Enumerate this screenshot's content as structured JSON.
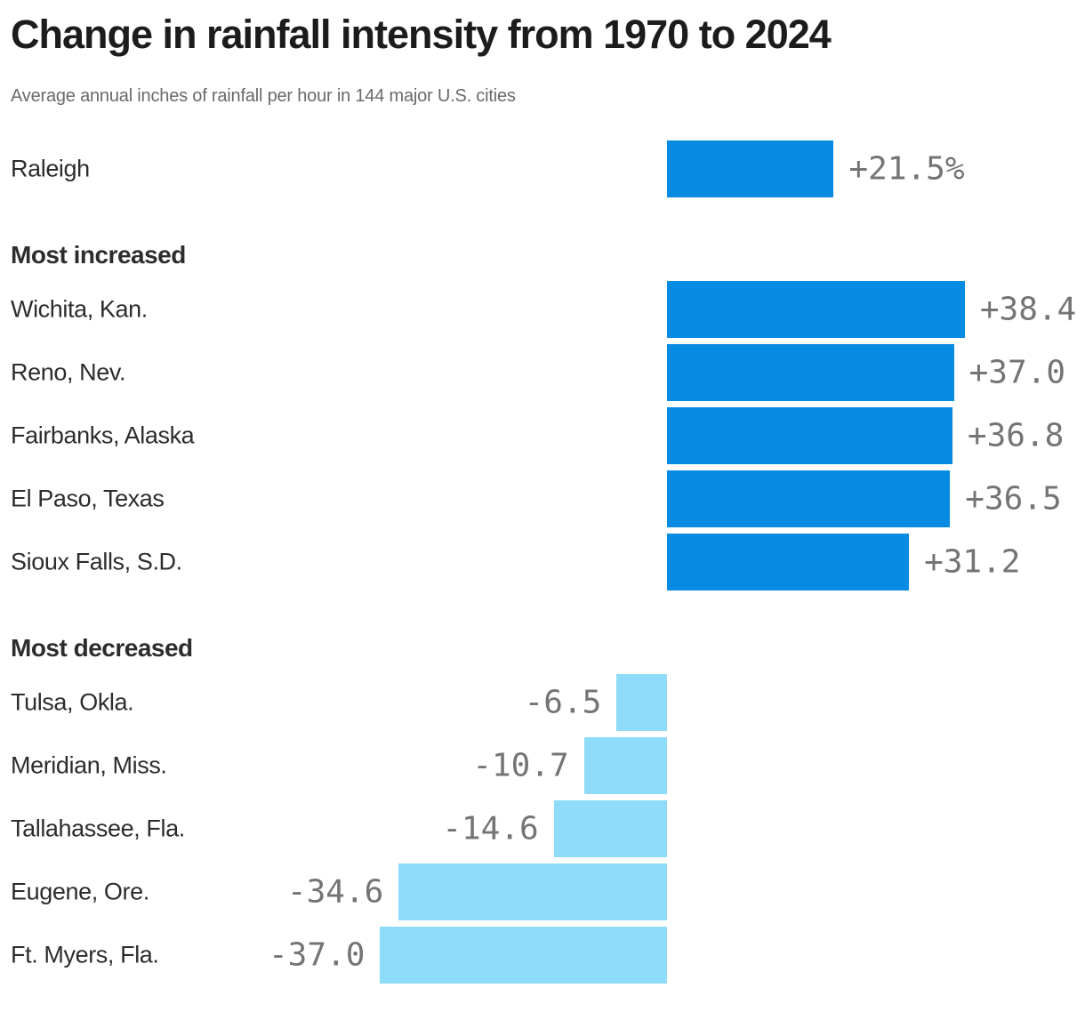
{
  "header": {
    "title": "Change in rainfall intensity from 1970 to 2024",
    "subtitle": "Average annual inches of rainfall per hour in 144 major U.S. cities"
  },
  "chart_data": {
    "type": "bar",
    "orientation": "horizontal-diverging",
    "title": "Change in rainfall intensity from 1970 to 2024",
    "subtitle": "Average annual inches of rainfall per hour in 144 major U.S. cities",
    "unit": "percent change",
    "baseline_value": 0,
    "xlim": [
      -38.4,
      38.4
    ],
    "grid": false,
    "legend": false,
    "colors": {
      "positive": "#058be2",
      "negative": "#8edcfa"
    },
    "groups": [
      {
        "heading": "",
        "rows": [
          {
            "label": "Raleigh",
            "value": 21.5,
            "value_label": "+21.5%"
          }
        ]
      },
      {
        "heading": "Most increased",
        "rows": [
          {
            "label": "Wichita, Kan.",
            "value": 38.4,
            "value_label": "+38.4"
          },
          {
            "label": "Reno, Nev.",
            "value": 37.0,
            "value_label": "+37.0"
          },
          {
            "label": "Fairbanks, Alaska",
            "value": 36.8,
            "value_label": "+36.8"
          },
          {
            "label": "El Paso, Texas",
            "value": 36.5,
            "value_label": "+36.5"
          },
          {
            "label": "Sioux Falls, S.D.",
            "value": 31.2,
            "value_label": "+31.2"
          }
        ]
      },
      {
        "heading": "Most decreased",
        "rows": [
          {
            "label": "Tulsa, Okla.",
            "value": -6.5,
            "value_label": "-6.5"
          },
          {
            "label": "Meridian, Miss.",
            "value": -10.7,
            "value_label": "-10.7"
          },
          {
            "label": "Tallahassee, Fla.",
            "value": -14.6,
            "value_label": "-14.6"
          },
          {
            "label": "Eugene, Ore.",
            "value": -34.6,
            "value_label": "-34.6"
          },
          {
            "label": "Ft. Myers, Fla.",
            "value": -37.0,
            "value_label": "-37.0"
          }
        ]
      }
    ]
  }
}
